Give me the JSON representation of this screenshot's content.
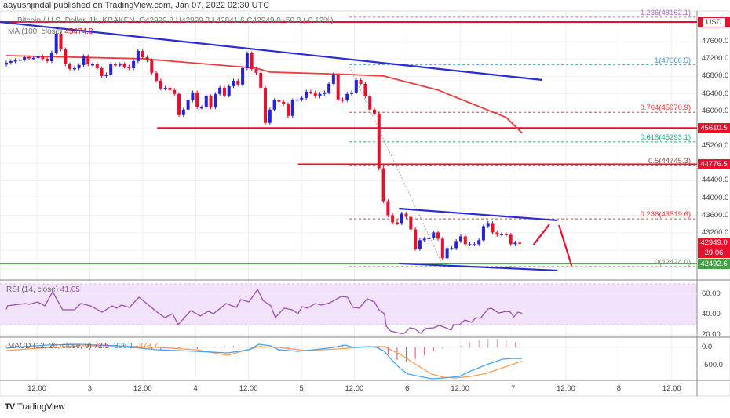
{
  "header": {
    "publisher": "aayushjindal published on TradingView.com, Jan 07, 2022 02:30 UTC"
  },
  "legend": {
    "symbol": "Bitcoin / U.S. Dollar, 1h, KRAKEN",
    "ohlc": "O42999.8  H42999.8  L42841.6  C42949.0  -50.8 (-0.12%)",
    "ma_label": "MA (100, close)",
    "ma_value": "45474.8"
  },
  "price_axis": {
    "currency": "USD",
    "ticks": [
      "47600.0",
      "47200.0",
      "46800.0",
      "46400.0",
      "46000.0",
      "45200.0",
      "44400.0",
      "44000.0",
      "43600.0",
      "43200.0"
    ]
  },
  "badges": {
    "resistance_1": "45610.5",
    "resistance_2": "44776.5",
    "last_price": "42949.0",
    "countdown": "29:06",
    "support": "42492.6"
  },
  "time_axis": {
    "ticks": [
      "12:00",
      "3",
      "12:00",
      "4",
      "12:00",
      "5",
      "12:00",
      "6",
      "12:00",
      "7",
      "12:00",
      "8",
      "12:00"
    ]
  },
  "rsi": {
    "label": "RSI (14, close)",
    "value": "41.05",
    "ticks": [
      "60.00",
      "40.00",
      "20.00"
    ]
  },
  "macd": {
    "label": "MACD (12, 26, close, 9)",
    "hist": "72.5",
    "macd": "-306.1",
    "signal": "-378.7",
    "ticks": [
      "0.0",
      "-500.0"
    ]
  },
  "footer": {
    "brand": "TradingView"
  },
  "colors": {
    "bull": "#2424d4",
    "bear": "#e8112d",
    "ma": "#ef3b3b",
    "trend": "#2b2bd6",
    "support": "#4caf50",
    "rsi": "#9c4fb0",
    "macd": "#42a5f5",
    "signal": "#ff9b52"
  },
  "chart_data": {
    "type": "candlestick",
    "title": "Bitcoin / U.S. Dollar, 1h, KRAKEN",
    "closes": [
      47114,
      47150,
      47168,
      47186,
      47240,
      47222,
      47222,
      47258,
      47204,
      47150,
      47348,
      47780,
      47420,
      47078,
      46970,
      46988,
      47060,
      47258,
      47078,
      47078,
      46988,
      46808,
      46844,
      47078,
      47060,
      47078,
      47024,
      46988,
      47150,
      47384,
      47240,
      47168,
      46880,
      46700,
      46520,
      46538,
      46484,
      46394,
      45908,
      46034,
      46250,
      46430,
      46088,
      46088,
      46340,
      46088,
      46394,
      46538,
      46358,
      46574,
      46700,
      46610,
      46988,
      47330,
      46970,
      46880,
      46538,
      45728,
      46034,
      46250,
      46214,
      46160,
      45890,
      46250,
      46268,
      46304,
      46448,
      46430,
      46340,
      46394,
      46430,
      46628,
      46844,
      46268,
      46250,
      46394,
      46430,
      46718,
      46628,
      46340,
      46034,
      45944,
      44684,
      43928,
      43604,
      43442,
      43424,
      43640,
      43568,
      43280,
      42830,
      43028,
      43064,
      43082,
      43208,
      43064,
      42614,
      42848,
      42848,
      43010,
      43118,
      42938,
      42938,
      42938,
      43028,
      43352,
      43424,
      43208,
      43154,
      43172,
      43154,
      42938,
      42974,
      42949
    ],
    "first_open": 47070,
    "ma100": [
      [
        0,
        47276
      ],
      [
        30,
        47204
      ],
      [
        55,
        46988
      ],
      [
        58,
        46898
      ],
      [
        75,
        46844
      ],
      [
        83,
        46808
      ],
      [
        95,
        46484
      ],
      [
        110,
        45854
      ],
      [
        113.5,
        45494
      ]
    ],
    "ylim": [
      42200,
      48250
    ],
    "trendlines": [
      {
        "name": "descending-resistance",
        "points": [
          [
            -1.4,
            48050
          ],
          [
            117.8,
            46718
          ]
        ],
        "color": "#2b2bd6"
      },
      {
        "name": "channel-top",
        "points": [
          [
            86.4,
            43757
          ],
          [
            121.3,
            43487
          ]
        ],
        "color": "#2b2bd6"
      },
      {
        "name": "channel-bottom",
        "points": [
          [
            86.4,
            42495
          ],
          [
            121.3,
            42332
          ]
        ],
        "color": "#2b2bd6"
      },
      {
        "name": "projection-up",
        "points": [
          [
            116,
            42924
          ],
          [
            119.5,
            43394
          ]
        ],
        "color": "#e8112d"
      },
      {
        "name": "projection-down",
        "points": [
          [
            121.6,
            43376
          ],
          [
            124.4,
            42438
          ]
        ],
        "color": "#e8112d"
      }
    ],
    "horizontal_levels": [
      {
        "name": "top-resistance",
        "price": 48050,
        "from": -2,
        "color": "#e8112d"
      },
      {
        "name": "resistance-45610",
        "price": 45610.5,
        "from": 33.2,
        "color": "#e8112d"
      },
      {
        "name": "resistance-44776",
        "price": 44776.5,
        "from": 64.2,
        "color": "#e8112d"
      },
      {
        "name": "support-42492",
        "price": 42492.6,
        "from": -2,
        "color": "#4caf50"
      }
    ],
    "fib_anchor": [
      [
        75.5,
        47023
      ],
      [
        96.2,
        42422
      ]
    ],
    "fib_levels": [
      {
        "label": "1.236(48162.1)",
        "price": 48162.1,
        "color": "#b06cd0"
      },
      {
        "label": "1(47066.5)",
        "price": 47066.5,
        "color": "#4a9fd0"
      },
      {
        "label": "0.764(45970.9)",
        "price": 45970.9,
        "color": "#e53935"
      },
      {
        "label": "0.618(45293.1)",
        "price": 45293.1,
        "color": "#1fae80"
      },
      {
        "label": "0.5(44745.3)",
        "price": 44745.3,
        "color": "#8a4a4a"
      },
      {
        "label": "0.236(43519.6)",
        "price": 43519.6,
        "color": "#e53935"
      },
      {
        "label": "0(42424.0)",
        "price": 42424.0,
        "color": "#888888"
      }
    ],
    "rsi_band": [
      30,
      70
    ],
    "rsi_series": [
      [
        0,
        45
      ],
      [
        0.3,
        48.5
      ],
      [
        4.3,
        50.8
      ],
      [
        5,
        50
      ],
      [
        6.9,
        52.3
      ],
      [
        8.5,
        48.5
      ],
      [
        10.2,
        62.3
      ],
      [
        12.4,
        44.6
      ],
      [
        15,
        44.6
      ],
      [
        16.4,
        50.8
      ],
      [
        18.5,
        48.5
      ],
      [
        21.1,
        42.3
      ],
      [
        23.3,
        48.5
      ],
      [
        24.2,
        46.2
      ],
      [
        25.4,
        49.2
      ],
      [
        27.1,
        46.9
      ],
      [
        29.2,
        56.9
      ],
      [
        30.9,
        50.8
      ],
      [
        33.2,
        42.3
      ],
      [
        34.9,
        36.9
      ],
      [
        36.6,
        40.8
      ],
      [
        37.8,
        30
      ],
      [
        40.6,
        43.8
      ],
      [
        42.7,
        38.5
      ],
      [
        44.4,
        43.1
      ],
      [
        45.6,
        40.8
      ],
      [
        48.4,
        50.8
      ],
      [
        50.6,
        46.9
      ],
      [
        51.6,
        54.6
      ],
      [
        53.4,
        52.3
      ],
      [
        55.3,
        64.6
      ],
      [
        56.5,
        53.8
      ],
      [
        58.2,
        48.5
      ],
      [
        59.2,
        36.9
      ],
      [
        61.1,
        46.2
      ],
      [
        62.9,
        44.6
      ],
      [
        64.2,
        40.8
      ],
      [
        65.1,
        47.7
      ],
      [
        66.3,
        46.2
      ],
      [
        68,
        50.8
      ],
      [
        69.4,
        49.2
      ],
      [
        71.2,
        51.5
      ],
      [
        73.7,
        57.7
      ],
      [
        75.1,
        56.9
      ],
      [
        76.3,
        46.9
      ],
      [
        77.7,
        46.2
      ],
      [
        79.4,
        55.4
      ],
      [
        81,
        52.3
      ],
      [
        82,
        44.6
      ],
      [
        83.2,
        40.8
      ],
      [
        83.6,
        28.5
      ],
      [
        84.6,
        23.8
      ],
      [
        86.7,
        21.5
      ],
      [
        87.6,
        21.5
      ],
      [
        88.8,
        26.9
      ],
      [
        89.8,
        26.2
      ],
      [
        91.2,
        21.5
      ],
      [
        92.2,
        26.2
      ],
      [
        94,
        26.9
      ],
      [
        95.3,
        29.2
      ],
      [
        96.7,
        26.9
      ],
      [
        97.9,
        24.6
      ],
      [
        98.4,
        30
      ],
      [
        99.7,
        30
      ],
      [
        100.9,
        34.6
      ],
      [
        102.4,
        32.3
      ],
      [
        103.3,
        36.9
      ],
      [
        104.3,
        36.2
      ],
      [
        106,
        45.4
      ],
      [
        106.7,
        46.2
      ],
      [
        108.3,
        41.5
      ],
      [
        110,
        43.1
      ],
      [
        110.9,
        42.3
      ],
      [
        111.7,
        37.7
      ],
      [
        112.6,
        42.3
      ],
      [
        113.5,
        41.05
      ]
    ],
    "macd_series": [
      [
        0,
        -22
      ],
      [
        3.8,
        22
      ],
      [
        9,
        65
      ],
      [
        15.9,
        87
      ],
      [
        24.5,
        43
      ],
      [
        33.2,
        -65
      ],
      [
        41.8,
        -109
      ],
      [
        48.7,
        -152
      ],
      [
        53.4,
        -65
      ],
      [
        55.6,
        87
      ],
      [
        58.2,
        43
      ],
      [
        59.9,
        -65
      ],
      [
        64.2,
        -109
      ],
      [
        67.7,
        -65
      ],
      [
        72,
        0
      ],
      [
        74.6,
        65
      ],
      [
        76.3,
        0
      ],
      [
        79.8,
        22
      ],
      [
        81.5,
        0
      ],
      [
        83.2,
        -109
      ],
      [
        85,
        -369
      ],
      [
        86.7,
        -586
      ],
      [
        88.4,
        -738
      ],
      [
        91,
        -803
      ],
      [
        93.6,
        -868
      ],
      [
        96.2,
        -846
      ],
      [
        99.7,
        -803
      ],
      [
        102.2,
        -651
      ],
      [
        105.7,
        -477
      ],
      [
        109.2,
        -326
      ],
      [
        111.7,
        -304
      ],
      [
        113.5,
        -306.1
      ]
    ],
    "signal_series": [
      [
        0,
        -87
      ],
      [
        7.3,
        -22
      ],
      [
        15.9,
        43
      ],
      [
        24.5,
        43
      ],
      [
        33.2,
        0
      ],
      [
        41.8,
        -65
      ],
      [
        48.7,
        -217
      ],
      [
        55.6,
        22
      ],
      [
        59.9,
        0
      ],
      [
        66,
        -87
      ],
      [
        72.9,
        -43
      ],
      [
        79.8,
        22
      ],
      [
        83.2,
        22
      ],
      [
        86.7,
        -195
      ],
      [
        90.2,
        -477
      ],
      [
        93.6,
        -738
      ],
      [
        96.2,
        -825
      ],
      [
        98.8,
        -846
      ],
      [
        102.2,
        -803
      ],
      [
        105.7,
        -716
      ],
      [
        109.2,
        -564
      ],
      [
        113.5,
        -378.7
      ]
    ]
  }
}
